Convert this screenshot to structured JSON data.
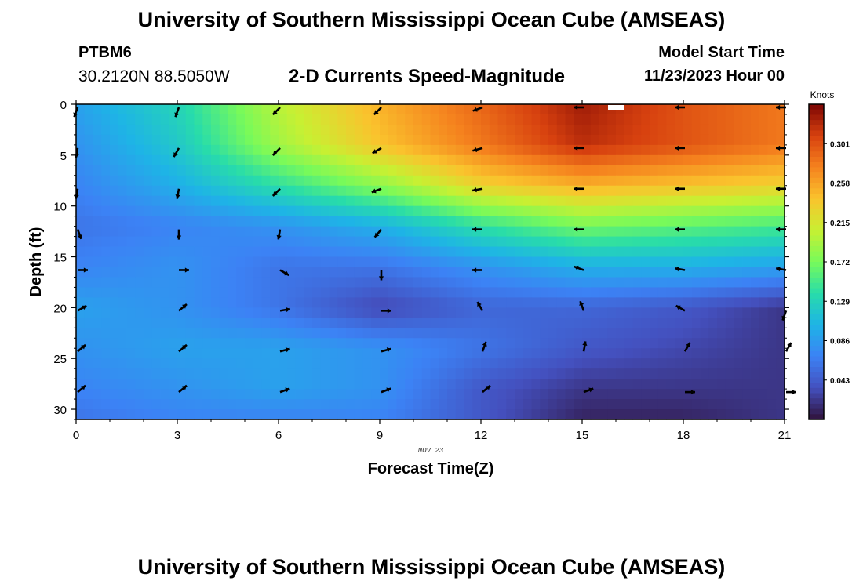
{
  "header": {
    "title": "University of Southern Mississippi Ocean Cube (AMSEAS)",
    "station_id": "PTBM6",
    "coords": "30.2120N  88.5050W",
    "plot_title": "2-D Currents Speed-Magnitude",
    "model_start_label": "Model Start Time",
    "model_start_value": "11/23/2023 Hour 00"
  },
  "footer": {
    "title": "University of Southern Mississippi Ocean Cube (AMSEAS)"
  },
  "chart_data": {
    "type": "heatmap",
    "xlabel": "Forecast Time(Z)",
    "ylabel": "Depth (ft)",
    "date_annotation": "NOV 23",
    "xlim": [
      0,
      21
    ],
    "ylim": [
      0,
      31
    ],
    "x_ticks": [
      0,
      3,
      6,
      9,
      12,
      15,
      18,
      21
    ],
    "y_ticks": [
      0,
      5,
      10,
      15,
      20,
      25,
      30
    ],
    "colorbar": {
      "label": "Knots",
      "range": [
        0.0,
        0.344
      ],
      "ticks": [
        "0.301",
        "0.258",
        "0.215",
        "0.172",
        "0.129",
        "0.086",
        "0.043"
      ],
      "tick_values": [
        0.301,
        0.258,
        0.215,
        0.172,
        0.129,
        0.086,
        0.043
      ]
    },
    "grid_x_hours": [
      0,
      3,
      6,
      9,
      12,
      15,
      18,
      21
    ],
    "grid_y_depths": [
      0,
      4,
      8,
      12,
      16,
      20,
      24,
      28,
      31
    ],
    "speed_knots": [
      [
        0.09,
        0.13,
        0.2,
        0.25,
        0.29,
        0.33,
        0.3,
        0.28
      ],
      [
        0.08,
        0.12,
        0.19,
        0.24,
        0.28,
        0.32,
        0.3,
        0.28
      ],
      [
        0.07,
        0.1,
        0.14,
        0.18,
        0.23,
        0.25,
        0.24,
        0.23
      ],
      [
        0.06,
        0.07,
        0.08,
        0.1,
        0.14,
        0.17,
        0.16,
        0.15
      ],
      [
        0.07,
        0.08,
        0.06,
        0.06,
        0.08,
        0.1,
        0.1,
        0.09
      ],
      [
        0.09,
        0.08,
        0.06,
        0.03,
        0.05,
        0.05,
        0.04,
        0.02
      ],
      [
        0.08,
        0.09,
        0.09,
        0.08,
        0.06,
        0.04,
        0.03,
        0.02
      ],
      [
        0.07,
        0.08,
        0.09,
        0.08,
        0.04,
        0.02,
        0.02,
        0.02
      ],
      [
        0.06,
        0.07,
        0.07,
        0.07,
        0.04,
        0.01,
        0.01,
        0.02
      ]
    ],
    "arrow_depths": [
      0,
      4,
      8,
      12,
      16,
      20,
      24,
      28
    ],
    "arrow_directions_deg": [
      [
        250,
        250,
        225,
        225,
        200,
        180,
        180,
        180
      ],
      [
        260,
        240,
        225,
        210,
        195,
        180,
        180,
        180
      ],
      [
        260,
        260,
        225,
        200,
        190,
        180,
        180,
        180
      ],
      [
        290,
        270,
        260,
        230,
        180,
        180,
        180,
        180
      ],
      [
        0,
        0,
        330,
        270,
        180,
        160,
        170,
        170
      ],
      [
        30,
        40,
        10,
        0,
        120,
        110,
        150,
        250
      ],
      [
        40,
        40,
        15,
        15,
        70,
        80,
        60,
        60
      ],
      [
        40,
        40,
        20,
        20,
        40,
        20,
        0,
        0
      ]
    ],
    "arrow_magnitudes": [
      [
        0.09,
        0.13,
        0.2,
        0.25,
        0.29,
        0.33,
        0.3,
        0.28
      ],
      [
        0.08,
        0.12,
        0.19,
        0.24,
        0.28,
        0.32,
        0.3,
        0.28
      ],
      [
        0.07,
        0.1,
        0.14,
        0.18,
        0.23,
        0.25,
        0.24,
        0.23
      ],
      [
        0.06,
        0.07,
        0.08,
        0.1,
        0.14,
        0.17,
        0.16,
        0.15
      ],
      [
        0.07,
        0.08,
        0.06,
        0.06,
        0.08,
        0.1,
        0.1,
        0.09
      ],
      [
        0.09,
        0.08,
        0.06,
        0.03,
        0.05,
        0.05,
        0.04,
        0.02
      ],
      [
        0.08,
        0.09,
        0.09,
        0.08,
        0.06,
        0.04,
        0.03,
        0.02
      ],
      [
        0.07,
        0.08,
        0.09,
        0.08,
        0.04,
        0.02,
        0.02,
        0.02
      ]
    ]
  }
}
